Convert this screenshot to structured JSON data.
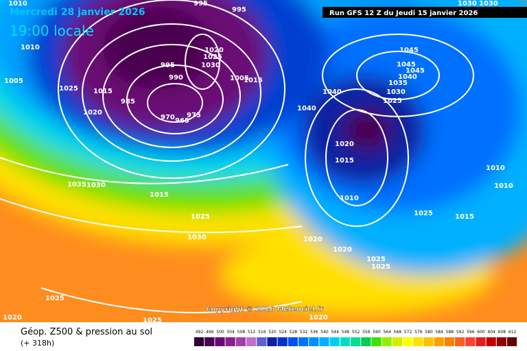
{
  "header": {
    "date": "Mercredi 28 janvier 2026",
    "time": "19:00 locale",
    "run": "Run GFS 12 Z du Jeudi 15 janvier 2026"
  },
  "copyright": "Copyright © 2026 Meteociel.fr",
  "footer": {
    "title": "Géop. Z500 & pression au sol",
    "lead": "(+ 318h)"
  },
  "isobar_labels": [
    "1010",
    "995",
    "995",
    "1030",
    "1030",
    "1010",
    "1020",
    "1025",
    "995",
    "1030",
    "1045",
    "1045",
    "1045",
    "1040",
    "1035",
    "1005",
    "1025",
    "1015",
    "990",
    "1005",
    "1015",
    "1040",
    "1030",
    "1025",
    "985",
    "1020",
    "1040",
    "970",
    "965",
    "975",
    "1020",
    "1015",
    "1010",
    "1035",
    "1030",
    "1010",
    "1015",
    "1010",
    "1025",
    "1025",
    "1015",
    "1030",
    "1020",
    "1020",
    "1025",
    "1025",
    "1025",
    "1020",
    "1025",
    "1020"
  ],
  "legend": {
    "labels": [
      492,
      496,
      500,
      504,
      508,
      512,
      516,
      520,
      524,
      528,
      532,
      536,
      540,
      544,
      548,
      552,
      556,
      560,
      564,
      568,
      572,
      576,
      580,
      584,
      588,
      592,
      596,
      600,
      604,
      608,
      612
    ],
    "colors": [
      "#2d0036",
      "#4b0050",
      "#6a0b74",
      "#8a2090",
      "#a040a8",
      "#c070c8",
      "#6060d0",
      "#1020a0",
      "#0030d0",
      "#0050f0",
      "#0070ff",
      "#0090ff",
      "#00b0ff",
      "#00d0f0",
      "#00e0c0",
      "#00e090",
      "#00d050",
      "#40e000",
      "#90f000",
      "#d0f000",
      "#ffff00",
      "#ffe000",
      "#ffc000",
      "#ffa000",
      "#ff8000",
      "#ff6020",
      "#ff4030",
      "#e02020",
      "#c00000",
      "#900000",
      "#600000"
    ]
  }
}
